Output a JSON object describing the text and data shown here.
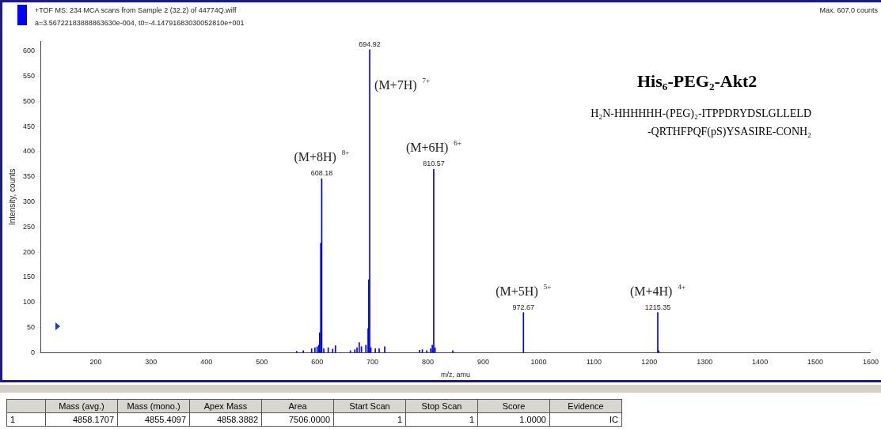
{
  "chart_data": {
    "type": "bar",
    "title": "His₆-PEG₂-Akt2",
    "subtitle": "H₂N-HHHHHH-(PEG)₂-ITPPDRYDSLGLLELD\n-QRTHFPQF(pS)YSASIRE-CONH₂",
    "xlabel": "m/z, amu",
    "ylabel": "Intensity, counts",
    "x": [
      563,
      575,
      590,
      596,
      600,
      603,
      604.5,
      606.5,
      608.18,
      612,
      620,
      628,
      633,
      660,
      668,
      672,
      676,
      680,
      688,
      692,
      693.2,
      694.92,
      697,
      705,
      712,
      722,
      785,
      790,
      798,
      805,
      808,
      810.57,
      813,
      845,
      972.67,
      1215.35,
      1217
    ],
    "values": [
      3,
      4,
      8,
      10,
      12,
      15,
      40,
      218,
      346,
      8,
      10,
      7,
      14,
      4,
      6,
      10,
      20,
      12,
      15,
      48,
      145,
      603,
      10,
      8,
      8,
      12,
      5,
      6,
      4,
      8,
      15,
      365,
      10,
      4,
      80,
      80,
      4
    ],
    "color": "#0000ff",
    "xlim": [
      100,
      1600
    ],
    "ylim": [
      0,
      620
    ],
    "xticks": [
      200,
      300,
      400,
      500,
      600,
      700,
      800,
      900,
      1000,
      1100,
      1200,
      1300,
      1400,
      1500,
      1600
    ],
    "yticks": [
      0,
      50,
      100,
      150,
      200,
      250,
      300,
      350,
      400,
      450,
      500,
      550,
      600
    ],
    "grid": false,
    "legend": false,
    "annotations": [
      "+TOF MS: 234 MCA scans from Sample 2 (32.2) of 44774Q.wiff",
      "a=3.56722183888863630e-004, t0=-4.14791683030052810e+001",
      "Max. 607.0 counts",
      {
        "text": "608.18",
        "x": 608.18,
        "y": 346
      },
      {
        "text": "694.92",
        "x": 694.92,
        "y": 603
      },
      {
        "text": "810.57",
        "x": 810.57,
        "y": 365
      },
      {
        "text": "972.67",
        "x": 972.67,
        "y": 80
      },
      {
        "text": "1215.35",
        "x": 1215.35,
        "y": 80
      },
      {
        "text": "(M+8H) $^{8+}$",
        "x": 608.18,
        "y": 346
      },
      {
        "text": "(M+7H) $^{7+}$",
        "x": 694.92,
        "y": 603
      },
      {
        "text": "(M+6H) $^{6+}$",
        "x": 810.57,
        "y": 365
      },
      {
        "text": "(M+5H) $^{5+}$",
        "x": 972.67,
        "y": 80
      },
      {
        "text": "(M+4H) $^{4+}$",
        "x": 1215.35,
        "y": 80
      },
      "Mass (avg.)",
      "Mass (mono.)",
      "Apex Mass",
      "Area",
      "Start Scan",
      "Stop Scan",
      "Score",
      "Evidence",
      "1",
      "4858.1707",
      "4855.4097",
      "4858.3882",
      "7506.0000",
      "1",
      "1",
      "1.0000",
      "IC"
    ]
  }
}
